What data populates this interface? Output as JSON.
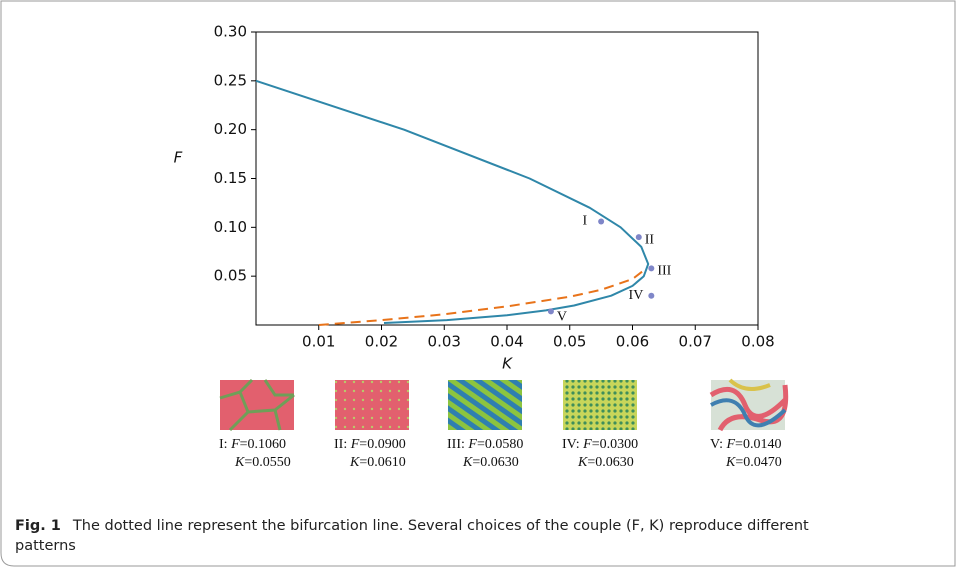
{
  "chart_data": {
    "type": "line",
    "xlabel": "K",
    "ylabel": "F",
    "xlim": [
      0,
      0.08
    ],
    "ylim": [
      0,
      0.3
    ],
    "xticks": [
      0.01,
      0.02,
      0.03,
      0.04,
      0.05,
      0.06,
      0.07,
      0.08
    ],
    "yticks": [
      0.05,
      {
        "value": 0.1,
        "label": "0.10"
      },
      0.15,
      {
        "value": 0.2,
        "label": "0.20"
      },
      0.25,
      {
        "value": 0.3,
        "label": "0.30"
      }
    ],
    "series": [
      {
        "color": "#2f87a9",
        "dash": false,
        "x": [
          0,
          0.0236,
          0.0436,
          0.0532,
          0.0581,
          0.0614,
          0.0625,
          0.0618,
          0.06,
          0.0566,
          0.0507,
          0.0462,
          0.04,
          0.0304,
          0.0204
        ],
        "values": [
          0.25,
          0.2,
          0.15,
          0.12,
          0.1,
          0.08,
          0.0625,
          0.05,
          0.04,
          0.03,
          0.02,
          0.015,
          0.01,
          0.005,
          0.002
        ]
      },
      {
        "color": "#e8731a",
        "dash": true,
        "x": [
          0.01,
          0.02,
          0.03,
          0.04,
          0.05,
          0.055,
          0.06,
          0.0622
        ],
        "values": [
          0,
          0.005,
          0.011,
          0.019,
          0.029,
          0.036,
          0.047,
          0.058
        ]
      }
    ],
    "points_color": "#7f86c8",
    "patterns": [
      {
        "label": "I",
        "F": 0.106,
        "F_label": "0.1060",
        "K": 0.055,
        "K_label": "0.0550"
      },
      {
        "label": "II",
        "F": 0.09,
        "F_label": "0.0900",
        "K": 0.061,
        "K_label": "0.0610"
      },
      {
        "label": "III",
        "F": 0.058,
        "F_label": "0.0580",
        "K": 0.063,
        "K_label": "0.0630"
      },
      {
        "label": "IV",
        "F": 0.03,
        "F_label": "0.0300",
        "K": 0.063,
        "K_label": "0.0630"
      },
      {
        "label": "V",
        "F": 0.014,
        "F_label": "0.0140",
        "K": 0.047,
        "K_label": "0.0470"
      }
    ]
  },
  "caption": {
    "label": "Fig. 1",
    "text": "The dotted line represent the bifurcation line. Several choices of the couple (F, K) reproduce different patterns"
  }
}
